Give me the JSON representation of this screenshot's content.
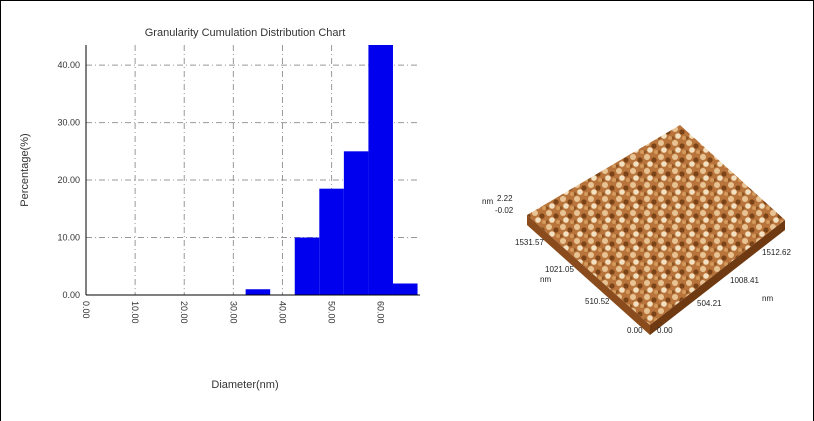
{
  "chart_data": {
    "type": "histogram",
    "title": "Granularity Cumulation Distribution  Chart",
    "x_label": "Diameter(nm)",
    "y_label": "Percentage(%)",
    "bins": [
      32.5,
      37.5,
      42.5,
      47.5,
      52.5,
      57.5,
      62.5,
      67.5
    ],
    "values": [
      1,
      0,
      10,
      18.5,
      25,
      43.5,
      2
    ],
    "color": "#0000ee",
    "xlim": [
      0,
      68
    ],
    "ylim": [
      0,
      43.5
    ],
    "xticks": [
      {
        "value": 0,
        "label": "0.00"
      },
      {
        "value": 10,
        "label": "10.00"
      },
      {
        "value": 20,
        "label": "20.00"
      },
      {
        "value": 30,
        "label": "30.00"
      },
      {
        "value": 40,
        "label": "40.00"
      },
      {
        "value": 50,
        "label": "50.00"
      },
      {
        "value": 60,
        "label": "60.00"
      }
    ],
    "yticks": [
      {
        "value": 0,
        "label": "0.00"
      },
      {
        "value": 10,
        "label": "10.00"
      },
      {
        "value": 20,
        "label": "20.00"
      },
      {
        "value": 30,
        "label": "30.00"
      },
      {
        "value": 40,
        "label": "40.00"
      }
    ],
    "grid": true
  },
  "afm_image": {
    "z_unit": "nm",
    "z_max": "2.22",
    "z_min": "-0.02",
    "left_axis": [
      "1531.57",
      "1021.05",
      "510.52",
      "0.00"
    ],
    "left_unit": "nm",
    "right_axis": [
      "0.00",
      "504.21",
      "1008.41",
      "1512.62"
    ],
    "right_unit": "nm"
  }
}
